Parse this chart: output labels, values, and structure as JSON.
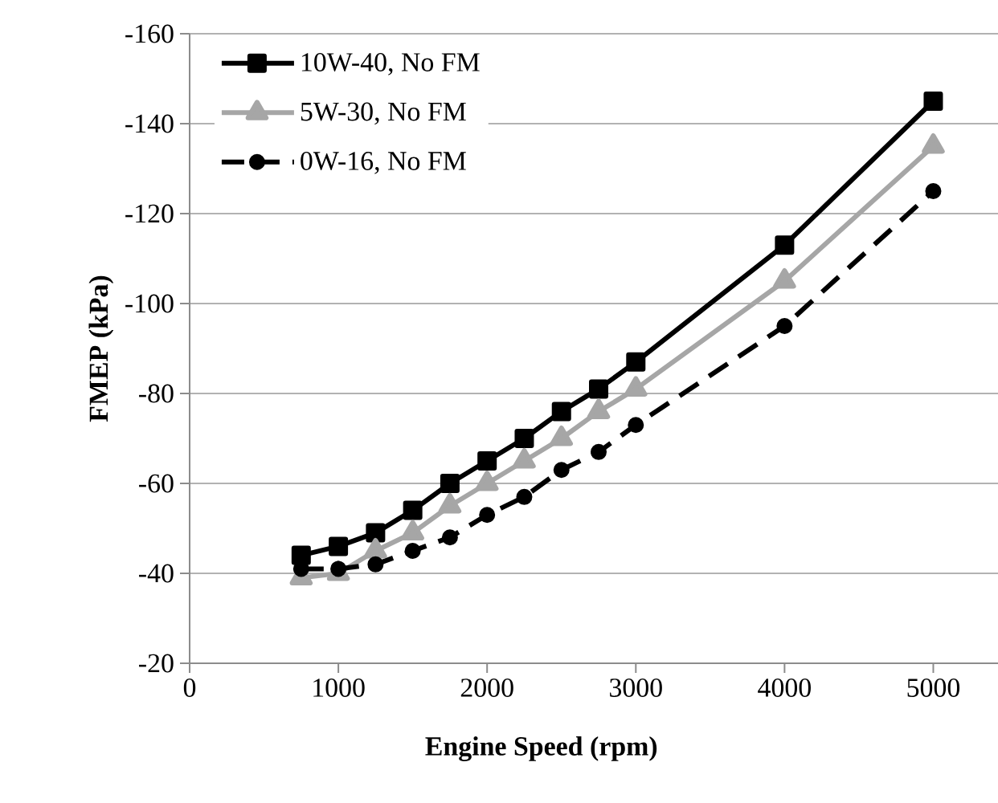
{
  "chart_data": {
    "type": "line",
    "xlabel": "Engine Speed (rpm)",
    "ylabel": "FMEP (kPa)",
    "x": [
      750,
      1000,
      1250,
      1500,
      1750,
      2000,
      2250,
      2500,
      2750,
      3000,
      4000,
      5000
    ],
    "series": [
      {
        "name": "10W-40, No FM",
        "color": "#000000",
        "marker": "square",
        "line_style": "solid",
        "values": [
          -44,
          -46,
          -49,
          -54,
          -60,
          -65,
          -70,
          -76,
          -81,
          -87,
          -113,
          -145
        ]
      },
      {
        "name": "5W-30, No FM",
        "color": "#a6a6a6",
        "marker": "triangle",
        "line_style": "solid",
        "values": [
          -39,
          -40,
          -45,
          -49,
          -55,
          -60,
          -65,
          -70,
          -76,
          -81,
          -105,
          -135
        ]
      },
      {
        "name": "0W-16, No FM",
        "color": "#000000",
        "marker": "circle",
        "line_style": "dashed",
        "values": [
          -41,
          -41,
          -42,
          -45,
          -48,
          -53,
          -57,
          -63,
          -67,
          -73,
          -95,
          -125
        ]
      }
    ],
    "xlim": [
      0,
      5500
    ],
    "xticks": [
      0,
      1000,
      2000,
      3000,
      4000,
      5000
    ],
    "ylim": [
      -20,
      -160
    ],
    "yticks": [
      -20,
      -40,
      -60,
      -80,
      -100,
      -120,
      -140,
      -160
    ],
    "grid": "y",
    "legend": "top left"
  }
}
